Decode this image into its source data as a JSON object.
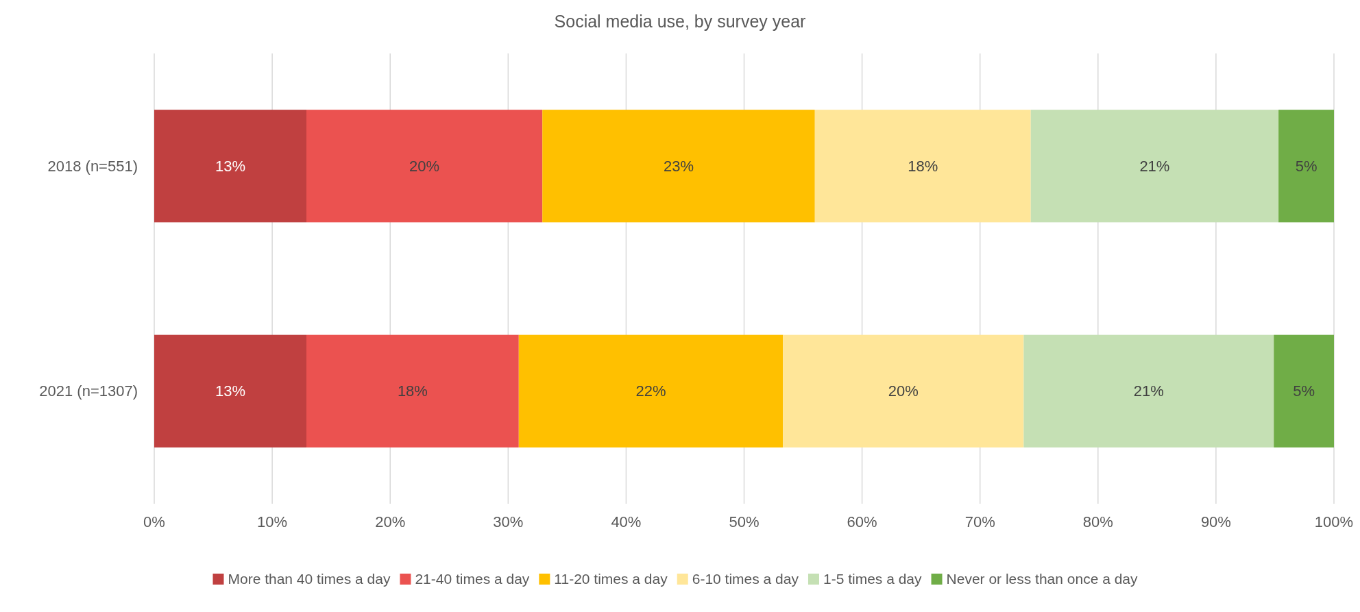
{
  "chart_data": {
    "type": "bar",
    "orientation": "horizontal",
    "stacked": true,
    "title": "Social media use, by survey year",
    "categories": [
      "2018 (n=551)",
      "2021 (n=1307)"
    ],
    "series": [
      {
        "name": "More than 40 times a day",
        "color": "#c04040",
        "values": [
          12.9,
          12.9
        ],
        "value_labels": [
          "13%",
          "13%"
        ]
      },
      {
        "name": "21-40 times a day",
        "color": "#eb5250",
        "values": [
          20.0,
          18.0
        ],
        "value_labels": [
          "20%",
          "18%"
        ]
      },
      {
        "name": "11-20 times a day",
        "color": "#ffc000",
        "values": [
          23.1,
          22.4
        ],
        "value_labels": [
          "23%",
          "22%"
        ]
      },
      {
        "name": "6-10 times a day",
        "color": "#ffe699",
        "values": [
          18.3,
          20.4
        ],
        "value_labels": [
          "18%",
          "20%"
        ]
      },
      {
        "name": "1-5 times a day",
        "color": "#c5e0b4",
        "values": [
          21.0,
          21.2
        ],
        "value_labels": [
          "21%",
          "21%"
        ]
      },
      {
        "name": "Never or less than once a day",
        "color": "#70ad47",
        "values": [
          4.7,
          5.1
        ],
        "value_labels": [
          "5%",
          "5%"
        ]
      }
    ],
    "xlim": [
      0,
      100
    ],
    "xticks": [
      {
        "value": 0,
        "label": "0%"
      },
      {
        "value": 10,
        "label": "10%"
      },
      {
        "value": 20,
        "label": "20%"
      },
      {
        "value": 30,
        "label": "30%"
      },
      {
        "value": 40,
        "label": "40%"
      },
      {
        "value": 50,
        "label": "50%"
      },
      {
        "value": 60,
        "label": "60%"
      },
      {
        "value": 70,
        "label": "70%"
      },
      {
        "value": 80,
        "label": "80%"
      },
      {
        "value": 90,
        "label": "90%"
      },
      {
        "value": 100,
        "label": "100%"
      }
    ],
    "grid": "x",
    "legend": "bottom"
  }
}
